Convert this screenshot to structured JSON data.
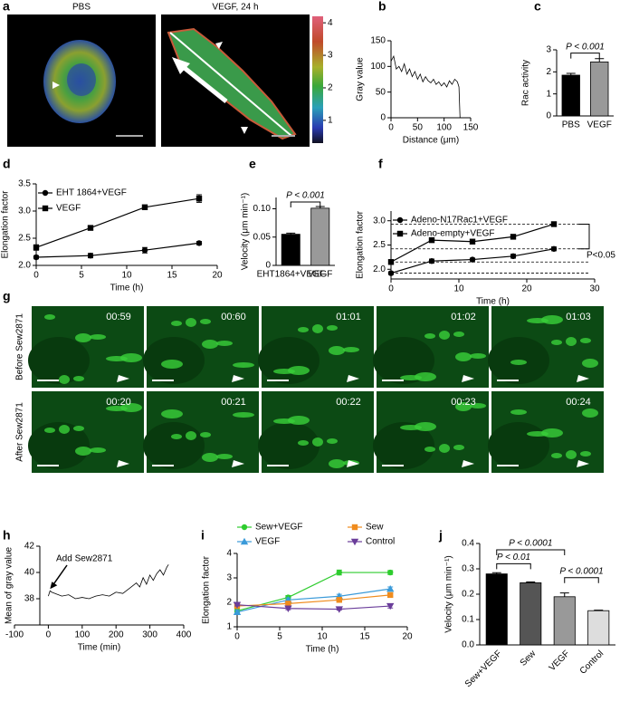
{
  "figure": {
    "panel_a": {
      "panel": "a",
      "titles": [
        "PBS",
        "VEGF, 24 h"
      ],
      "colorbar_ticks": [
        4,
        3,
        2,
        1
      ],
      "colorbar_lim": [
        0.3,
        4.2
      ]
    },
    "panel_g": {
      "panel": "g",
      "row_labels": [
        "Before Sew2871",
        "After Sew2871"
      ],
      "timestamps": [
        [
          "00:59",
          "00:60",
          "01:01",
          "01:02",
          "01:03"
        ],
        [
          "00:20",
          "00:21",
          "00:22",
          "00:23",
          "00:24"
        ]
      ]
    }
  },
  "chart_data": [
    {
      "type": "line",
      "panel": "b",
      "xlabel": "Distance (μm)",
      "ylabel": "Gray value",
      "x": [
        0,
        5,
        10,
        15,
        20,
        25,
        30,
        35,
        40,
        45,
        50,
        55,
        60,
        65,
        70,
        75,
        80,
        85,
        90,
        95,
        100,
        105,
        110,
        115,
        120,
        125,
        128,
        130
      ],
      "series": [
        {
          "color": "#000000",
          "values": [
            110,
            120,
            95,
            100,
            90,
            105,
            85,
            95,
            80,
            90,
            75,
            85,
            70,
            80,
            72,
            68,
            75,
            65,
            70,
            62,
            68,
            60,
            72,
            65,
            75,
            70,
            60,
            0
          ]
        }
      ],
      "xlim": [
        0,
        150
      ],
      "ylim": [
        0,
        150
      ],
      "xticks": [
        0,
        50,
        100,
        150
      ],
      "yticks": [
        0,
        50,
        100,
        150
      ]
    },
    {
      "type": "bar",
      "panel": "c",
      "ylabel": "Rac activity",
      "categories": [
        "PBS",
        "VEGF"
      ],
      "values": [
        1.85,
        2.45
      ],
      "errors": [
        0.08,
        0.15
      ],
      "colors": [
        "#000000",
        "#999999"
      ],
      "ylim": [
        0,
        3
      ],
      "yticks": [
        0,
        1,
        2,
        3
      ],
      "annotations": [
        "P < 0.001"
      ]
    },
    {
      "type": "line",
      "panel": "d",
      "xlabel": "Time (h)",
      "ylabel": "Elongation factor",
      "x": [
        0,
        6,
        12,
        18
      ],
      "series": [
        {
          "name": "EHT 1864+VEGF",
          "color": "#000000",
          "marker": "circle",
          "values": [
            2.15,
            2.18,
            2.28,
            2.41
          ],
          "errors": [
            0.03,
            0.04,
            0.05,
            0.03
          ]
        },
        {
          "name": "VEGF",
          "color": "#000000",
          "marker": "square",
          "values": [
            2.33,
            2.69,
            3.07,
            3.23
          ],
          "errors": [
            0.05,
            0.03,
            0.02,
            0.07
          ]
        }
      ],
      "xlim": [
        0,
        20
      ],
      "ylim": [
        2,
        3.5
      ],
      "xticks": [
        0,
        5,
        10,
        15,
        20
      ],
      "yticks": [
        {
          "value": 2,
          "label": "2.0"
        },
        2.5,
        {
          "value": 3,
          "label": "3.0"
        },
        3.5
      ],
      "legend": "upper left"
    },
    {
      "type": "bar",
      "panel": "e",
      "ylabel": "Velocity (μm min⁻¹)",
      "categories": [
        "EHT1864+VEGF",
        "VEGF"
      ],
      "values": [
        0.055,
        0.101
      ],
      "errors": [
        0.002,
        0.003
      ],
      "colors": [
        "#000000",
        "#999999"
      ],
      "ylim": [
        0,
        0.12
      ],
      "yticks": [
        0,
        0.05,
        {
          "value": 0.1,
          "label": "0.10"
        }
      ],
      "annotations": [
        "P < 0.001"
      ]
    },
    {
      "type": "line",
      "panel": "f",
      "xlabel": "Time (h)",
      "ylabel": "Elongation factor",
      "x": [
        0,
        6,
        12,
        18,
        24
      ],
      "series": [
        {
          "name": "Adeno-N17Rac1+VEGF",
          "color": "#000000",
          "marker": "circle",
          "values": [
            1.92,
            2.17,
            2.2,
            2.27,
            2.42
          ],
          "errors": [
            0.03,
            0.04,
            0.03,
            0.04,
            0.04
          ]
        },
        {
          "name": "Adeno-empty+VEGF",
          "color": "#000000",
          "marker": "square",
          "values": [
            2.15,
            2.6,
            2.57,
            2.67,
            2.93
          ],
          "errors": [
            0.03,
            0.04,
            0.02,
            0.03,
            0.03
          ]
        }
      ],
      "xlim": [
        0,
        30
      ],
      "ylim": [
        1.8,
        3.2
      ],
      "xticks": [
        0,
        10,
        20,
        30
      ],
      "yticks": [
        {
          "value": 2,
          "label": "2.0"
        },
        2.5,
        {
          "value": 3,
          "label": "3.0"
        }
      ],
      "legend": "upper left",
      "annotations": [
        "P<0.05"
      ]
    },
    {
      "type": "line",
      "panel": "h",
      "xlabel": "Time (min)",
      "ylabel": "Mean of gray value",
      "x": [
        0,
        5,
        10,
        20,
        40,
        60,
        80,
        100,
        120,
        140,
        160,
        180,
        200,
        220,
        240,
        260,
        270,
        280,
        290,
        300,
        310,
        320,
        330,
        340,
        350,
        355
      ],
      "series": [
        {
          "color": "#000000",
          "values": [
            38.2,
            38.6,
            38.5,
            38.4,
            38.2,
            38.3,
            38.0,
            38.1,
            38.0,
            38.2,
            38.3,
            38.2,
            38.5,
            38.4,
            38.8,
            39.2,
            38.9,
            39.6,
            39.1,
            39.8,
            39.4,
            39.9,
            40.2,
            39.8,
            40.4,
            40.6
          ]
        }
      ],
      "xlim": [
        -100,
        400
      ],
      "ylim": [
        36,
        42
      ],
      "xticks": [
        -100,
        0,
        100,
        200,
        300,
        400
      ],
      "yticks": [
        38,
        40,
        42
      ],
      "annotations": [
        "Add Sew2871"
      ]
    },
    {
      "type": "line",
      "panel": "i",
      "xlabel": "Time (h)",
      "ylabel": "Elongation factor",
      "x": [
        0,
        6,
        12,
        18
      ],
      "series": [
        {
          "name": "Sew+VEGF",
          "color": "#2ecc2e",
          "marker": "circle",
          "values": [
            1.65,
            2.2,
            3.22,
            3.22
          ],
          "errors": [
            0.08,
            0.08,
            0.1,
            0.08
          ]
        },
        {
          "name": "VEGF",
          "color": "#3a9ad9",
          "marker": "triangle",
          "values": [
            1.6,
            2.1,
            2.25,
            2.55
          ],
          "errors": [
            0.08,
            0.08,
            0.08,
            0.08
          ]
        },
        {
          "name": "Sew",
          "color": "#f08c1e",
          "marker": "square",
          "values": [
            1.85,
            1.95,
            2.1,
            2.3
          ],
          "errors": [
            0.06,
            0.06,
            0.07,
            0.08
          ]
        },
        {
          "name": "Control",
          "color": "#6a3d9a",
          "marker": "triangle-down",
          "values": [
            1.9,
            1.75,
            1.72,
            1.85
          ],
          "errors": [
            0.05,
            0.05,
            0.04,
            0.08
          ]
        }
      ],
      "xlim": [
        0,
        20
      ],
      "ylim": [
        1,
        4
      ],
      "xticks": [
        0,
        5,
        10,
        15,
        20
      ],
      "yticks": [
        1,
        2,
        3,
        4
      ],
      "legend": "upper center"
    },
    {
      "type": "bar",
      "panel": "j",
      "ylabel": "Velocity (μm min⁻¹)",
      "categories": [
        "Sew+VEGF",
        "Sew",
        "VEGF",
        "Control"
      ],
      "values": [
        0.28,
        0.245,
        0.19,
        0.135
      ],
      "errors": [
        0.005,
        0.003,
        0.015,
        0.002
      ],
      "colors": [
        "#000000",
        "#555555",
        "#999999",
        "#dddddd"
      ],
      "ylim": [
        0,
        0.4
      ],
      "yticks": [
        {
          "value": 0,
          "label": "0.0"
        },
        0.1,
        0.2,
        0.3,
        0.4
      ],
      "annotations": [
        "P < 0.0001",
        "P < 0.01",
        "P < 0.0001"
      ]
    }
  ]
}
